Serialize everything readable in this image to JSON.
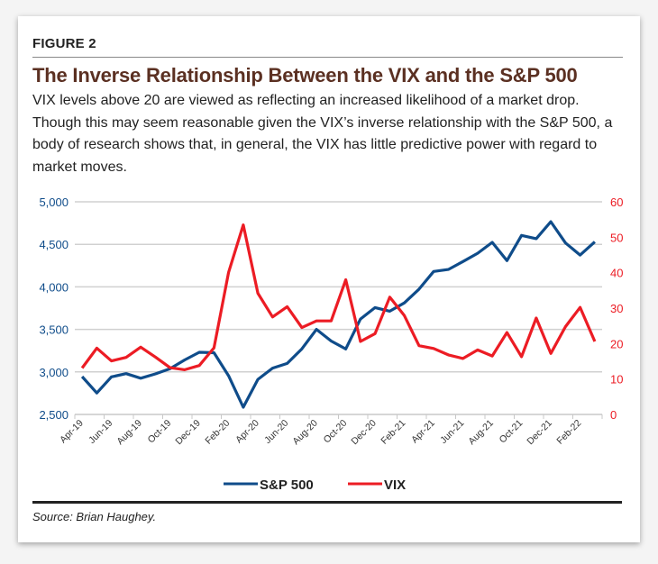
{
  "figure_label": "FIGURE 2",
  "title": "The Inverse Relationship Between the VIX and the S&P 500",
  "description": "VIX levels above 20 are viewed as reflecting an increased likelihood of a market drop. Though this may seem reasonable given the VIX’s inverse relationship with the S&P 500, a body of research shows that, in general, the VIX has little predictive power with regard to market moves.",
  "source": "Source: Brian Haughey.",
  "chart_data": {
    "type": "line",
    "x": [
      "Apr-19",
      "May-19",
      "Jun-19",
      "Jul-19",
      "Aug-19",
      "Sep-19",
      "Oct-19",
      "Nov-19",
      "Dec-19",
      "Jan-20",
      "Feb-20",
      "Mar-20",
      "Apr-20",
      "May-20",
      "Jun-20",
      "Jul-20",
      "Aug-20",
      "Sep-20",
      "Oct-20",
      "Nov-20",
      "Dec-20",
      "Jan-21",
      "Feb-21",
      "Mar-21",
      "Apr-21",
      "May-21",
      "Jun-21",
      "Jul-21",
      "Aug-21",
      "Sep-21",
      "Oct-21",
      "Nov-21",
      "Dec-21",
      "Jan-22",
      "Feb-22",
      "Mar-22"
    ],
    "x_tick_labels": [
      "Apr-19",
      "Jun-19",
      "Aug-19",
      "Oct-19",
      "Dec-19",
      "Feb-20",
      "Apr-20",
      "Jun-20",
      "Aug-20",
      "Oct-20",
      "Dec-20",
      "Feb-21",
      "Apr-21",
      "Jun-21",
      "Aug-21",
      "Oct-21",
      "Dec-21",
      "Feb-22"
    ],
    "series": [
      {
        "name": "S&P 500",
        "axis": "left",
        "color": "#0f4c8a",
        "values": [
          2945,
          2752,
          2942,
          2980,
          2926,
          2977,
          3038,
          3141,
          3231,
          3226,
          2954,
          2585,
          2912,
          3044,
          3100,
          3271,
          3500,
          3363,
          3270,
          3622,
          3756,
          3714,
          3811,
          3973,
          4181,
          4204,
          4298,
          4395,
          4523,
          4308,
          4605,
          4567,
          4766,
          4516,
          4374,
          4530
        ]
      },
      {
        "name": "VIX",
        "axis": "right",
        "color": "#ec1c24",
        "values": [
          13.1,
          18.7,
          15.1,
          16.1,
          19.0,
          16.2,
          13.2,
          12.6,
          13.8,
          18.8,
          40.1,
          53.5,
          34.2,
          27.5,
          30.4,
          24.5,
          26.4,
          26.4,
          38.0,
          20.6,
          22.8,
          33.1,
          27.9,
          19.4,
          18.6,
          16.8,
          15.8,
          18.2,
          16.5,
          23.1,
          16.3,
          27.2,
          17.2,
          24.8,
          30.2,
          20.6
        ]
      }
    ],
    "y_left": {
      "ylim": [
        2500,
        5000
      ],
      "ticks": [
        "2,500",
        "3,000",
        "3,500",
        "4,000",
        "4,500",
        "5,000"
      ],
      "color": "#0f4c8a"
    },
    "y_right": {
      "ylim": [
        0,
        60
      ],
      "ticks": [
        "0",
        "10",
        "20",
        "30",
        "40",
        "50",
        "60"
      ],
      "color": "#ec1c24"
    },
    "grid": true,
    "legend": "bottom"
  }
}
